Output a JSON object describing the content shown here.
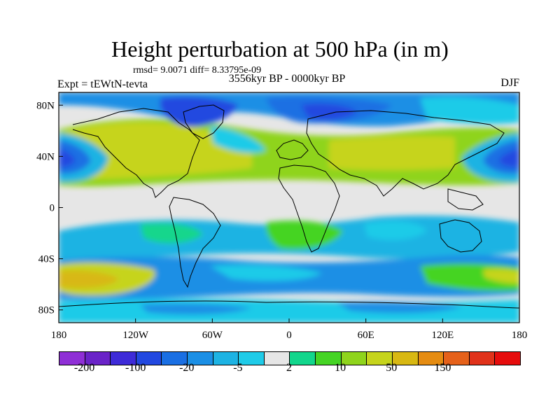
{
  "chart_data": {
    "type": "heatmap",
    "title": "Height perturbation at 500 hPa (in m)",
    "stats": "rmsd= 9.0071 diff= 8.33795e-09",
    "experiment": "Expt = tEWtN-tevta",
    "period": "3556kyr BP - 0000kyr BP",
    "season": "DJF",
    "x_ticks": [
      "180",
      "120W",
      "60W",
      "0",
      "60E",
      "120E",
      "180"
    ],
    "y_ticks": [
      "80N",
      "40N",
      "0",
      "40S",
      "80S"
    ],
    "xlim": [
      -180,
      180
    ],
    "ylim": [
      -90,
      90
    ],
    "colorbar": {
      "colors": [
        "#8f2fd6",
        "#6a23c8",
        "#3e2bd8",
        "#2248e0",
        "#1a6fe3",
        "#1b8fe5",
        "#1db3e3",
        "#1fcbe8",
        "#e6e6e6",
        "#12d68c",
        "#45d424",
        "#8fd41c",
        "#c6d41c",
        "#d8b812",
        "#e58c12",
        "#e5611a",
        "#e0321a",
        "#e60c0c"
      ],
      "labels": [
        "-200",
        "-100",
        "-20",
        "-5",
        "2",
        "10",
        "50",
        "150"
      ]
    }
  }
}
